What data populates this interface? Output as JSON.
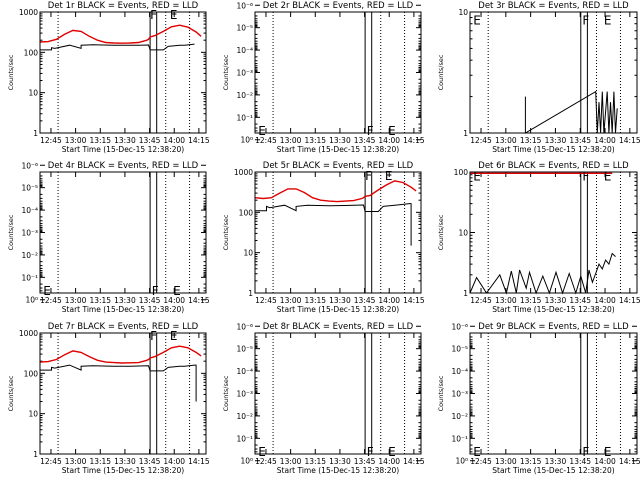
{
  "figure": {
    "background": "#ffffff",
    "axis_color": "#000000",
    "events_color": "#000000",
    "lld_color": "#e00000",
    "xtick_labels": [
      "12:45",
      "13:00",
      "13:15",
      "13:30",
      "13:45",
      "14:00",
      "14:15"
    ],
    "xtick_minutes": [
      6.67,
      21.67,
      36.67,
      51.67,
      66.67,
      81.67,
      96.67
    ],
    "x_range_minutes": [
      0,
      101
    ],
    "xlabel": "Start Time (15-Dec-15 12:38:20)",
    "ylabel": "Counts/sec",
    "dotted_lines_minutes": [
      11,
      76.5,
      91
    ],
    "flare_box_minutes": [
      67,
      71
    ],
    "markers": {
      "F": "F",
      "E": "E"
    }
  },
  "chart_data": [
    {
      "type": "line",
      "panel": 1,
      "title": "Det 1r BLACK = Events, RED = LLD",
      "y_scale": "log",
      "ylim": [
        1,
        1000
      ],
      "ytick_labels": [
        "1",
        "10",
        "100",
        "1000"
      ],
      "ytick_values": [
        1,
        10,
        100,
        1000
      ],
      "series": [
        {
          "name": "Events",
          "x": [
            0,
            7,
            7,
            9,
            18,
            25,
            25,
            32,
            45,
            55,
            60,
            66,
            67,
            75,
            78,
            85,
            88,
            94
          ],
          "y": [
            115,
            115,
            130,
            125,
            150,
            125,
            150,
            155,
            150,
            150,
            150,
            152,
            115,
            115,
            140,
            150,
            150,
            160
          ]
        },
        {
          "name": "LLD",
          "x": [
            0,
            5,
            10,
            15,
            20,
            25,
            30,
            35,
            40,
            45,
            50,
            55,
            60,
            65,
            66,
            67,
            70,
            75,
            80,
            85,
            90,
            95,
            98
          ],
          "y": [
            180,
            185,
            210,
            280,
            350,
            330,
            250,
            200,
            175,
            170,
            168,
            170,
            175,
            200,
            210,
            240,
            260,
            330,
            430,
            470,
            420,
            320,
            250
          ]
        }
      ],
      "markers": [
        {
          "label": "F",
          "x": 67,
          "y": 850
        },
        {
          "label": "E",
          "x": 79,
          "y": 850
        }
      ]
    },
    {
      "type": "line",
      "panel": 2,
      "title": "Det 2r BLACK = Events, RED = LLD",
      "y_scale": "log",
      "ylim": [
        0.5,
        2e-06
      ],
      "ytick_labels": [
        "10⁻⁶",
        "10⁻⁵",
        "10⁻⁴",
        "10⁻³",
        "10⁻²",
        "10⁻¹",
        "10⁰"
      ],
      "ytick_values": [
        1e-06,
        1e-05,
        0.0001,
        0.001,
        0.01,
        0.1,
        1
      ],
      "series": [],
      "markers": [
        {
          "label": "E",
          "x": 2,
          "y": 0.4
        },
        {
          "label": "F",
          "x": 68,
          "y": 0.4
        },
        {
          "label": "E",
          "x": 81,
          "y": 0.4
        }
      ]
    },
    {
      "type": "line",
      "panel": 3,
      "title": "Det 3r BLACK = Events, RED = LLD",
      "y_scale": "log",
      "ylim": [
        1,
        10
      ],
      "ytick_labels": [
        "1",
        "10"
      ],
      "ytick_values": [
        1,
        10
      ],
      "series": [
        {
          "name": "Events",
          "x": [
            33.5,
            33.5,
            33.5,
            76,
            77,
            78,
            79,
            80,
            81,
            82,
            83,
            84,
            85,
            86,
            87,
            88,
            89
          ],
          "y": [
            1,
            2,
            1,
            2.2,
            1,
            1.8,
            1,
            2.2,
            1,
            1.5,
            2.2,
            1,
            1.8,
            1,
            2.2,
            1,
            1.6
          ]
        }
      ],
      "markers": [
        {
          "label": "E",
          "x": 2,
          "y": 8.5
        },
        {
          "label": "F",
          "x": 68,
          "y": 8.5
        },
        {
          "label": "E",
          "x": 81,
          "y": 8.5
        }
      ]
    },
    {
      "type": "line",
      "panel": 4,
      "title": "Det 4r BLACK = Events, RED = LLD",
      "y_scale": "log",
      "ylim": [
        0.5,
        2e-06
      ],
      "ytick_labels": [
        "10⁻⁶",
        "10⁻⁵",
        "10⁻⁴",
        "10⁻³",
        "10⁻²",
        "10⁻¹",
        "10⁰"
      ],
      "ytick_values": [
        1e-06,
        1e-05,
        0.0001,
        0.001,
        0.01,
        0.1,
        1
      ],
      "series": [],
      "markers": [
        {
          "label": "E",
          "x": 2,
          "y": 0.4
        },
        {
          "label": "F",
          "x": 68,
          "y": 0.4
        },
        {
          "label": "E",
          "x": 81,
          "y": 0.4
        }
      ]
    },
    {
      "type": "line",
      "panel": 5,
      "title": "Det 5r BLACK = Events, RED = LLD",
      "y_scale": "log",
      "ylim": [
        1,
        1000
      ],
      "ytick_labels": [
        "1",
        "10",
        "100",
        "1000"
      ],
      "ytick_values": [
        1,
        10,
        100,
        1000
      ],
      "series": [
        {
          "name": "Events",
          "x": [
            0,
            7,
            7,
            9,
            18,
            25,
            25,
            32,
            45,
            55,
            60,
            66,
            67,
            75,
            78,
            85,
            88,
            94,
            95,
            95
          ],
          "y": [
            110,
            110,
            140,
            130,
            150,
            110,
            140,
            150,
            145,
            148,
            150,
            152,
            105,
            105,
            140,
            150,
            155,
            165,
            165,
            15
          ]
        },
        {
          "name": "LLD",
          "x": [
            0,
            5,
            10,
            15,
            20,
            25,
            30,
            35,
            40,
            45,
            50,
            55,
            60,
            65,
            66,
            67,
            70,
            75,
            80,
            85,
            90,
            95,
            98
          ],
          "y": [
            230,
            220,
            230,
            300,
            380,
            380,
            310,
            230,
            200,
            190,
            185,
            190,
            195,
            220,
            230,
            250,
            260,
            360,
            480,
            600,
            550,
            420,
            340
          ]
        }
      ],
      "markers": [
        {
          "label": "F",
          "x": 67,
          "y": 800
        },
        {
          "label": "E",
          "x": 79,
          "y": 800
        }
      ]
    },
    {
      "type": "line",
      "panel": 6,
      "title": "Det 6r BLACK = Events, RED = LLD",
      "y_scale": "log",
      "ylim": [
        1,
        100
      ],
      "ytick_labels": [
        "1",
        "10",
        "100"
      ],
      "ytick_values": [
        1,
        10,
        100
      ],
      "series": [
        {
          "name": "Events",
          "x": [
            0,
            4,
            10,
            18,
            22,
            25,
            28,
            30,
            34,
            36,
            40,
            44,
            48,
            52,
            56,
            60,
            64,
            67,
            70,
            72,
            74,
            76,
            78,
            80,
            82,
            84,
            86,
            88
          ],
          "y": [
            1,
            1.8,
            1,
            2,
            1,
            2.3,
            1,
            2.4,
            1.2,
            2.2,
            1,
            1.9,
            1,
            2.2,
            1,
            2.1,
            1,
            1.9,
            1,
            2.4,
            1.5,
            2.1,
            3,
            2.5,
            3.5,
            3,
            4.5,
            4
          ]
        },
        {
          "name": "LLD",
          "x": [
            0,
            8,
            67,
            71,
            74,
            80,
            86
          ],
          "y": [
            95,
            95,
            95,
            95,
            95,
            95,
            95
          ]
        }
      ],
      "markers": [
        {
          "label": "E",
          "x": 2,
          "y": 85
        },
        {
          "label": "F",
          "x": 68,
          "y": 85
        },
        {
          "label": "E",
          "x": 81,
          "y": 85
        }
      ]
    },
    {
      "type": "line",
      "panel": 7,
      "title": "Det 7r BLACK = Events, RED = LLD",
      "y_scale": "log",
      "ylim": [
        1,
        1000
      ],
      "ytick_labels": [
        "1",
        "10",
        "100",
        "1000"
      ],
      "ytick_values": [
        1,
        10,
        100,
        1000
      ],
      "series": [
        {
          "name": "Events",
          "x": [
            0,
            7,
            7,
            9,
            18,
            25,
            25,
            32,
            45,
            55,
            60,
            66,
            67,
            75,
            78,
            85,
            88,
            94,
            95,
            95
          ],
          "y": [
            120,
            120,
            140,
            135,
            160,
            120,
            150,
            155,
            150,
            150,
            152,
            155,
            115,
            115,
            140,
            150,
            150,
            160,
            160,
            20
          ]
        },
        {
          "name": "LLD",
          "x": [
            0,
            5,
            10,
            15,
            20,
            25,
            30,
            35,
            40,
            45,
            50,
            55,
            60,
            65,
            66,
            67,
            70,
            75,
            80,
            85,
            90,
            95,
            98
          ],
          "y": [
            190,
            195,
            220,
            290,
            360,
            330,
            260,
            210,
            190,
            185,
            180,
            182,
            185,
            210,
            220,
            240,
            260,
            330,
            430,
            470,
            430,
            330,
            270
          ]
        }
      ],
      "markers": [
        {
          "label": "F",
          "x": 67,
          "y": 850
        },
        {
          "label": "E",
          "x": 79,
          "y": 850
        }
      ]
    },
    {
      "type": "line",
      "panel": 8,
      "title": "Det 8r BLACK = Events, RED = LLD",
      "y_scale": "log",
      "ylim": [
        0.5,
        2e-06
      ],
      "ytick_labels": [
        "10⁻⁶",
        "10⁻⁵",
        "10⁻⁴",
        "10⁻³",
        "10⁻²",
        "10⁻¹",
        "10⁰"
      ],
      "ytick_values": [
        1e-06,
        1e-05,
        0.0001,
        0.001,
        0.01,
        0.1,
        1
      ],
      "series": [],
      "markers": [
        {
          "label": "E",
          "x": 2,
          "y": 0.4
        },
        {
          "label": "F",
          "x": 68,
          "y": 0.4
        },
        {
          "label": "E",
          "x": 81,
          "y": 0.4
        }
      ]
    },
    {
      "type": "line",
      "panel": 9,
      "title": "Det 9r BLACK = Events, RED = LLD",
      "y_scale": "log",
      "ylim": [
        0.5,
        2e-06
      ],
      "ytick_labels": [
        "10⁻⁶",
        "10⁻⁵",
        "10⁻⁴",
        "10⁻³",
        "10⁻²",
        "10⁻¹",
        "10⁰"
      ],
      "ytick_values": [
        1e-06,
        1e-05,
        0.0001,
        0.001,
        0.01,
        0.1,
        1
      ],
      "series": [],
      "markers": [
        {
          "label": "E",
          "x": 2,
          "y": 0.4
        },
        {
          "label": "F",
          "x": 68,
          "y": 0.4
        },
        {
          "label": "E",
          "x": 81,
          "y": 0.4
        }
      ]
    }
  ]
}
